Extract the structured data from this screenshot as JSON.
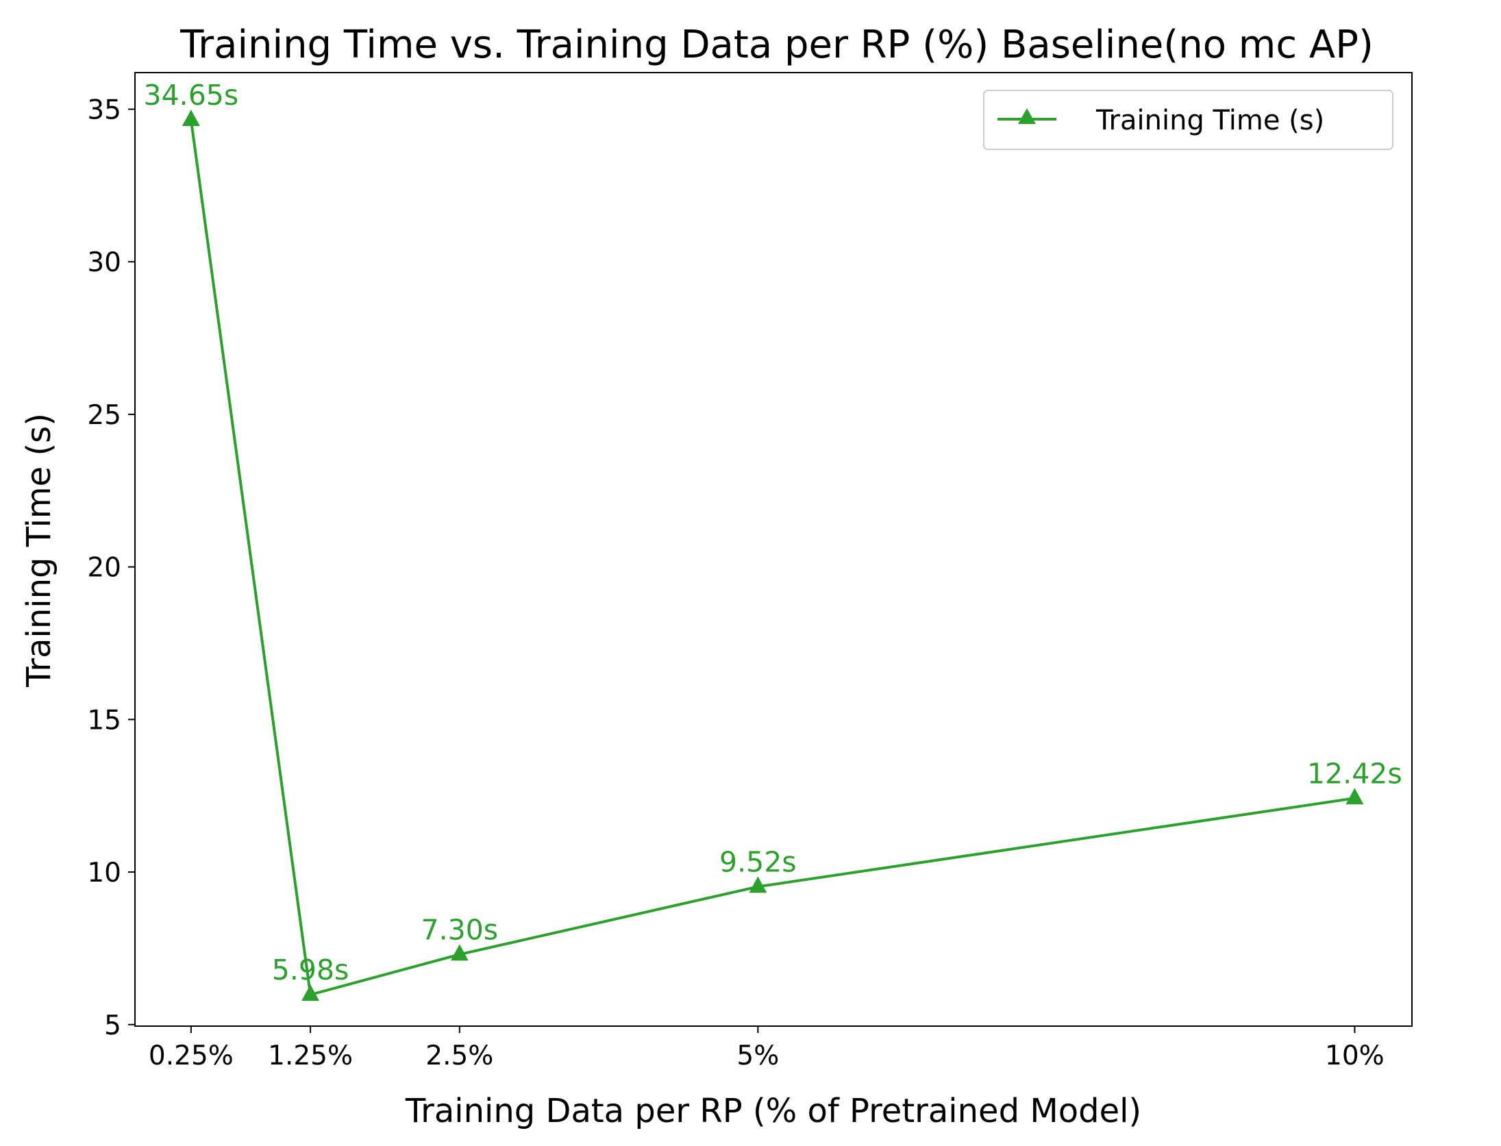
{
  "chart_data": {
    "type": "line",
    "title": "Training Time vs. Training Data per RP (%) Baseline(no mc AP)",
    "xlabel": "Training Data per RP (% of Pretrained Model)",
    "ylabel": "Training Time (s)",
    "x": [
      0.25,
      1.25,
      2.5,
      5,
      10
    ],
    "categories": [
      "0.25%",
      "1.25%",
      "2.5%",
      "5%",
      "10%"
    ],
    "xlim": [
      -0.22,
      10.48
    ],
    "ylim": [
      4.95,
      36.2
    ],
    "yticks": [
      5,
      10,
      15,
      20,
      25,
      30,
      35
    ],
    "series": [
      {
        "name": "Training Time (s)",
        "values": [
          34.65,
          5.98,
          7.3,
          9.52,
          12.42
        ],
        "data_labels": [
          "34.65s",
          "5.98s",
          "7.30s",
          "9.52s",
          "12.42s"
        ],
        "color": "#2ca02c",
        "marker": "triangle-up"
      }
    ],
    "legend_position": "upper right",
    "grid": false
  }
}
